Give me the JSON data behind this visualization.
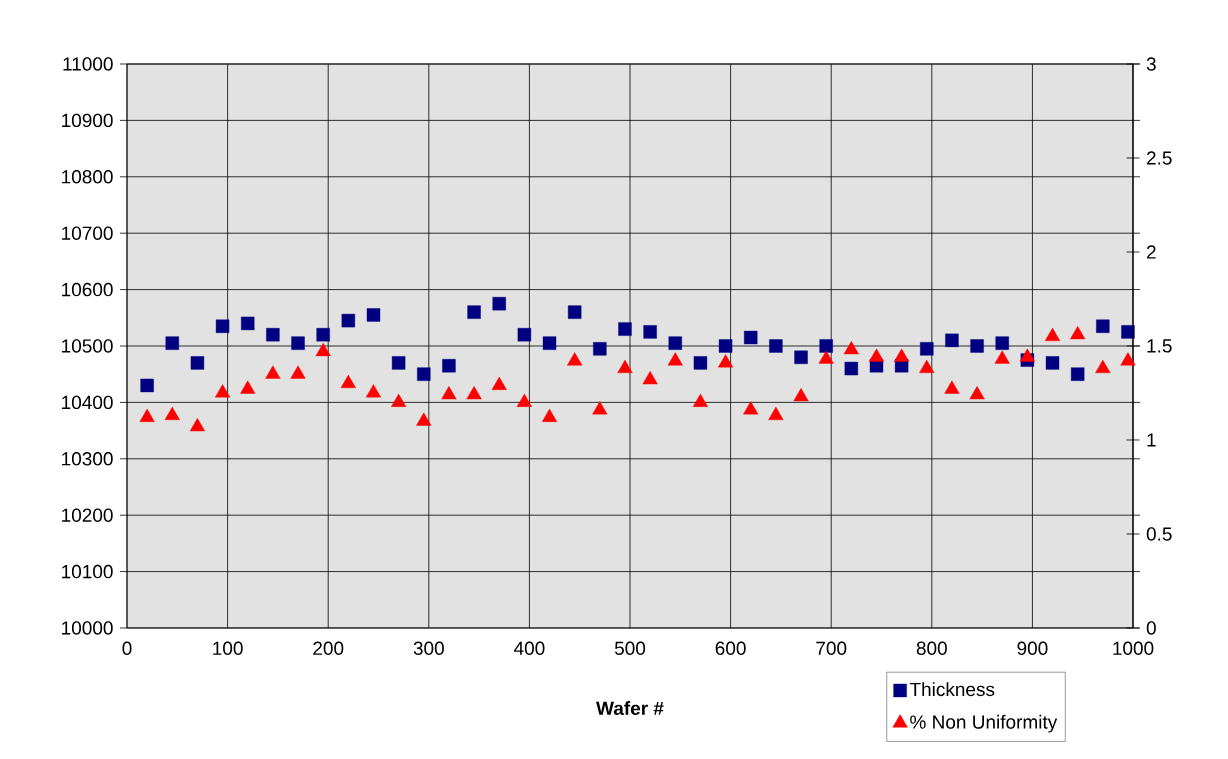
{
  "chart_data": {
    "type": "scatter",
    "xlabel": "Wafer #",
    "x": [
      20,
      45,
      70,
      95,
      120,
      145,
      170,
      195,
      220,
      245,
      270,
      295,
      320,
      345,
      370,
      395,
      420,
      445,
      470,
      495,
      520,
      545,
      570,
      595,
      620,
      645,
      670,
      695,
      720,
      745,
      770,
      795,
      820,
      845,
      870,
      895,
      920,
      945,
      970,
      995
    ],
    "series": [
      {
        "name": "Thickness",
        "color": "#000080",
        "marker": "square",
        "values": [
          10430,
          10505,
          10470,
          10535,
          10540,
          10520,
          10505,
          10520,
          10545,
          10555,
          10470,
          10450,
          10465,
          10560,
          10575,
          10520,
          10505,
          10560,
          10495,
          10530,
          10525,
          10505,
          10470,
          10500,
          10515,
          10500,
          10480,
          10500,
          10460,
          10465,
          10465,
          10495,
          10510,
          10500,
          10505,
          10475,
          10470,
          10450,
          10535,
          10525
        ]
      },
      {
        "name": "% Non Uniformity",
        "color": "#ff0000",
        "marker": "triangle",
        "axis": "y2",
        "values": [
          1.12,
          1.13,
          1.07,
          1.25,
          1.27,
          1.35,
          1.35,
          1.47,
          1.3,
          1.25,
          1.2,
          1.1,
          1.24,
          1.24,
          1.29,
          1.2,
          1.12,
          1.42,
          1.16,
          1.38,
          1.32,
          1.42,
          1.2,
          1.41,
          1.16,
          1.13,
          1.23,
          1.43,
          1.48,
          1.44,
          1.44,
          1.38,
          1.27,
          1.24,
          1.43,
          1.44,
          1.55,
          1.56,
          1.38,
          1.42
        ]
      }
    ],
    "xlim": [
      0,
      1000
    ],
    "xticks": [
      0,
      100,
      200,
      300,
      400,
      500,
      600,
      700,
      800,
      900,
      1000
    ],
    "ylim": [
      10000,
      11000
    ],
    "yticks": [
      10000,
      10100,
      10200,
      10300,
      10400,
      10500,
      10600,
      10700,
      10800,
      10900,
      11000
    ],
    "y2lim": [
      0,
      3
    ],
    "y2ticks": [
      0,
      0.5,
      1,
      1.5,
      2,
      2.5,
      3
    ],
    "grid": true,
    "legend": "bottom right"
  }
}
